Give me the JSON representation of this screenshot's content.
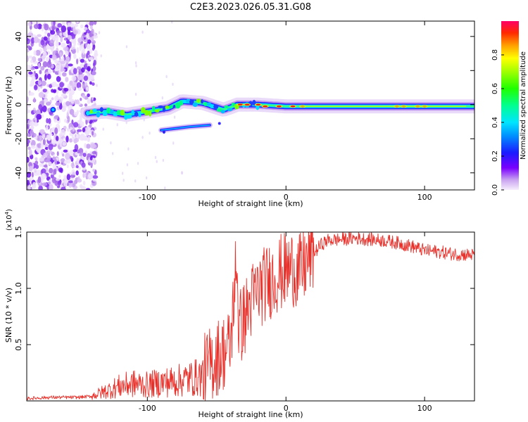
{
  "figure": {
    "title": "C2E3.2023.026.05.31.G08"
  },
  "chart_data": [
    {
      "type": "heatmap",
      "xlabel": "Height of straight line (km)",
      "ylabel": "Frequency (Hz)",
      "xlim": [
        -187,
        136
      ],
      "ylim": [
        -50,
        49
      ],
      "x_ticks": [
        -100,
        0,
        100
      ],
      "y_ticks": [
        -40,
        -20,
        0,
        20,
        40
      ],
      "grid": false,
      "colorbar": {
        "label": "Normalized spectral amplitude",
        "range": [
          0,
          1
        ],
        "ticks": [
          0.0,
          0.2,
          0.4,
          0.6,
          0.8
        ],
        "colormap": "rainbow"
      },
      "features": {
        "noise_region_x": [
          -187,
          -140
        ],
        "ridge_frequency_hz": [
          [
            -143,
            -5
          ],
          [
            -130,
            -4
          ],
          [
            -115,
            -6
          ],
          [
            -100,
            -4
          ],
          [
            -85,
            -2
          ],
          [
            -75,
            2
          ],
          [
            -60,
            1
          ],
          [
            -45,
            -3
          ],
          [
            -35,
            0
          ],
          [
            -20,
            0
          ],
          [
            0,
            -1
          ],
          [
            50,
            -1
          ],
          [
            100,
            -1
          ],
          [
            136,
            -1
          ]
        ],
        "secondary_band_hz": [
          [
            -90,
            -15
          ],
          [
            -70,
            -13
          ],
          [
            -55,
            -12
          ]
        ]
      },
      "colors": {
        "low": "#e9d6f7",
        "mid": "#00d8ff",
        "peak": "#e31a1c"
      }
    },
    {
      "type": "line",
      "xlabel": "Height of straight line (km)",
      "ylabel": "SNR (10 * v/v)",
      "y_multiplier_label": "(x10",
      "y_multiplier_exponent": "4",
      "y_multiplier_close": ")",
      "xlim": [
        -187,
        136
      ],
      "ylim": [
        0,
        1.5
      ],
      "x_ticks": [
        -100,
        0,
        100
      ],
      "y_ticks": [
        0.5,
        1.0,
        1.5
      ],
      "y_tick_labels": [
        "0.5",
        "1.0",
        "1.5"
      ],
      "grid": false,
      "series": [
        {
          "color": "#e8302a",
          "x": [
            -187,
            -170,
            -150,
            -140,
            -130,
            -120,
            -110,
            -100,
            -90,
            -80,
            -70,
            -60,
            -55,
            -50,
            -45,
            -40,
            -36,
            -34,
            -30,
            -25,
            -20,
            -15,
            -10,
            -5,
            0,
            5,
            10,
            15,
            20,
            25,
            30,
            40,
            50,
            60,
            70,
            80,
            90,
            100,
            110,
            120,
            136
          ],
          "y": [
            0.02,
            0.03,
            0.03,
            0.04,
            0.08,
            0.12,
            0.14,
            0.13,
            0.15,
            0.16,
            0.18,
            0.2,
            0.28,
            0.35,
            0.4,
            0.45,
            1.2,
            0.6,
            0.7,
            0.85,
            0.95,
            1.0,
            1.05,
            1.1,
            1.12,
            1.15,
            1.1,
            1.2,
            1.3,
            1.38,
            1.42,
            1.43,
            1.44,
            1.43,
            1.42,
            1.4,
            1.37,
            1.33,
            1.32,
            1.3,
            1.29
          ]
        }
      ]
    }
  ]
}
